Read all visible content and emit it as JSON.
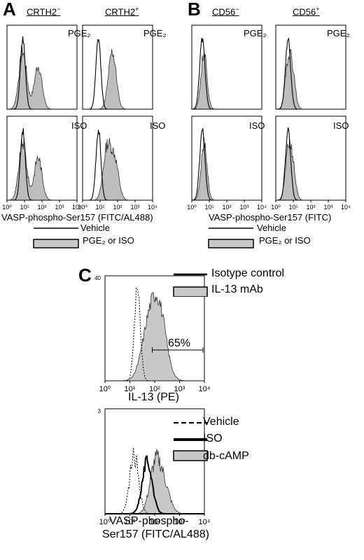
{
  "figure": {
    "panel_a": {
      "letter": "A",
      "col1_prefix": "CRTH2",
      "col1_sup": "−",
      "col2_prefix": "CRTH2",
      "col2_sup": "+",
      "row1_label": "PGE₂",
      "row2_label": "ISO",
      "xlabel": "VASP-phospho-Ser157 (FITC/AL488)",
      "legend": {
        "vehicle": "Vehicle",
        "treated": "PGE₂ or ISO"
      }
    },
    "panel_b": {
      "letter": "B",
      "col1_prefix": "CD56",
      "col1_sup": "−",
      "col2_prefix": "CD56",
      "col2_sup": "+",
      "row1_label": "PGE₂",
      "row2_label": "ISO",
      "xlabel": "VASP-phospho-Ser157 (FITC)",
      "legend": {
        "vehicle": "Vehicle",
        "treated": "PGE₂ or ISO"
      }
    },
    "panel_c": {
      "letter": "C",
      "top": {
        "legend": {
          "isotype": "Isotype control",
          "mab": "IL-13 mAb"
        },
        "gate_label": "65%",
        "ytick_top": "40",
        "xlabel": "IL-13 (PE)"
      },
      "bottom": {
        "legend": {
          "vehicle": "Vehicle",
          "iso": "ISO",
          "dbcamp": "db-cAMP"
        },
        "ytick_top": "3",
        "xlabel_line1": "VASP-phospho-",
        "xlabel_line2": "Ser157 (FITC/AL488)"
      }
    },
    "axis": {
      "ticks": [
        "10⁰",
        "10¹",
        "10²",
        "10³",
        "10⁴"
      ]
    }
  },
  "chart_data": [
    {
      "type": "area",
      "panel": "A",
      "x_scale": "log",
      "xlim": [
        1,
        10000
      ],
      "x_axis_label": "VASP-phospho-Ser157 (FITC/AL488)",
      "y_axis": "count (normalized, unlabeled)",
      "subplots": [
        {
          "column": "CRTH2−",
          "row": "PGE₂",
          "vehicle_peak": 8,
          "treated_peaks": [
            8,
            60
          ]
        },
        {
          "column": "CRTH2+",
          "row": "PGE₂",
          "vehicle_peak": 8,
          "treated_peaks": [
            50
          ]
        },
        {
          "column": "CRTH2−",
          "row": "ISO",
          "vehicle_peak": 8,
          "treated_peaks": [
            8,
            60
          ]
        },
        {
          "column": "CRTH2+",
          "row": "ISO",
          "vehicle_peak": 8,
          "treated_peaks": [
            25,
            70
          ]
        }
      ]
    },
    {
      "type": "area",
      "panel": "B",
      "x_scale": "log",
      "xlim": [
        1,
        10000
      ],
      "x_axis_label": "VASP-phospho-Ser157 (FITC)",
      "y_axis": "count (normalized, unlabeled)",
      "subplots": [
        {
          "column": "CD56−",
          "row": "PGE₂",
          "vehicle_peak": 4,
          "treated_peaks": [
            5
          ]
        },
        {
          "column": "CD56+",
          "row": "PGE₂",
          "vehicle_peak": 5,
          "treated_peaks": [
            5,
            9
          ]
        },
        {
          "column": "CD56−",
          "row": "ISO",
          "vehicle_peak": 4,
          "treated_peaks": [
            5
          ]
        },
        {
          "column": "CD56+",
          "row": "ISO",
          "vehicle_peak": 5,
          "treated_peaks": [
            5,
            9
          ]
        }
      ]
    },
    {
      "type": "area",
      "panel": "C-top",
      "x_scale": "log",
      "xlim": [
        1,
        10000
      ],
      "x_axis_label": "IL-13 (PE)",
      "y_axis_top_tick": "40",
      "series": [
        {
          "name": "Isotype control",
          "peak": 20
        },
        {
          "name": "IL-13 mAb",
          "peak": 100
        }
      ],
      "gate": {
        "from": 80,
        "to": 10000,
        "label": "65%"
      }
    },
    {
      "type": "area",
      "panel": "C-bottom",
      "x_scale": "log",
      "xlim": [
        1,
        10000
      ],
      "x_axis_label": "VASP-phospho-Ser157 (FITC/AL488)",
      "y_axis_top_tick": "3",
      "series": [
        {
          "name": "Vehicle",
          "peak": 15
        },
        {
          "name": "ISO",
          "peak": 50
        },
        {
          "name": "db-cAMP",
          "peak": 100
        }
      ]
    }
  ]
}
